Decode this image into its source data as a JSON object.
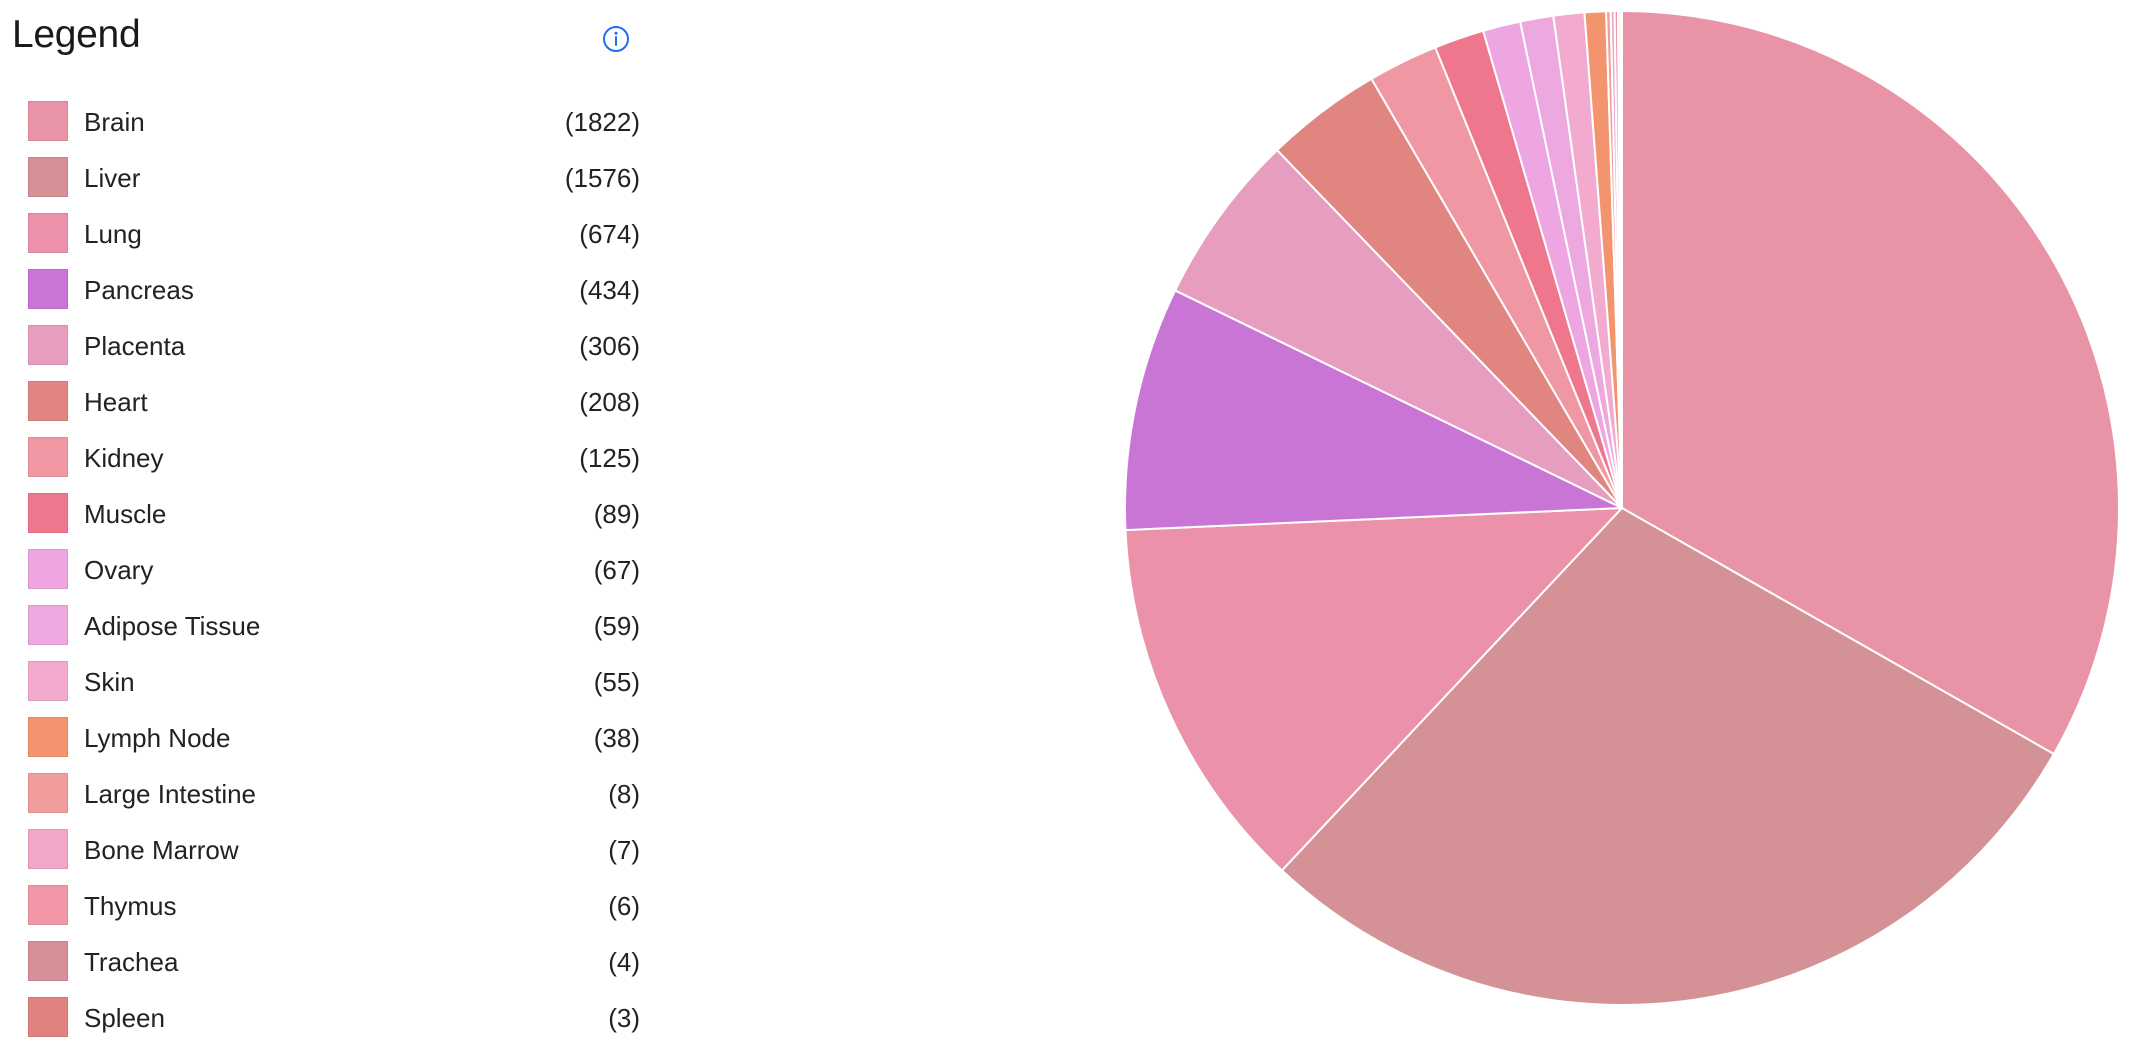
{
  "legend": {
    "title": "Legend",
    "info_icon": "info-icon"
  },
  "colors": {
    "info_icon": "#1f6fe5",
    "slice_stroke": "#ffffff"
  },
  "chart_data": {
    "type": "pie",
    "title": "",
    "start": "12 o'clock",
    "direction": "clockwise",
    "slices": [
      {
        "label": "Brain",
        "value": 1822,
        "display": "(1822)",
        "color": "#e893a6"
      },
      {
        "label": "Liver",
        "value": 1576,
        "display": "(1576)",
        "color": "#d49296"
      },
      {
        "label": "Lung",
        "value": 674,
        "display": "(674)",
        "color": "#ec91aa"
      },
      {
        "label": "Pancreas",
        "value": 434,
        "display": "(434)",
        "color": "#c975d6"
      },
      {
        "label": "Placenta",
        "value": 306,
        "display": "(306)",
        "color": "#e79dc0"
      },
      {
        "label": "Heart",
        "value": 208,
        "display": "(208)",
        "color": "#e08580"
      },
      {
        "label": "Kidney",
        "value": 125,
        "display": "(125)",
        "color": "#f097a4"
      },
      {
        "label": "Muscle",
        "value": 89,
        "display": "(89)",
        "color": "#ee768d"
      },
      {
        "label": "Ovary",
        "value": 67,
        "display": "(67)",
        "color": "#eda6e1"
      },
      {
        "label": "Adipose Tissue",
        "value": 59,
        "display": "(59)",
        "color": "#eea8e0"
      },
      {
        "label": "Skin",
        "value": 55,
        "display": "(55)",
        "color": "#f2aace"
      },
      {
        "label": "Lymph Node",
        "value": 38,
        "display": "(38)",
        "color": "#f2956f"
      },
      {
        "label": "Large Intestine",
        "value": 8,
        "display": "(8)",
        "color": "#f29d9d"
      },
      {
        "label": "Bone Marrow",
        "value": 7,
        "display": "(7)",
        "color": "#f2a7c9"
      },
      {
        "label": "Thymus",
        "value": 6,
        "display": "(6)",
        "color": "#f096a6"
      },
      {
        "label": "Trachea",
        "value": 4,
        "display": "(4)",
        "color": "#d79097"
      },
      {
        "label": "Spleen",
        "value": 3,
        "display": "(3)",
        "color": "#e0837f"
      }
    ]
  }
}
